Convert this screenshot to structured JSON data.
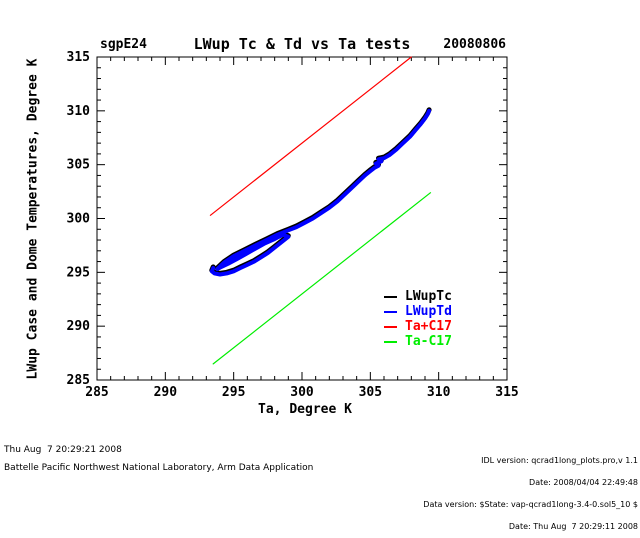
{
  "header": {
    "site": "sgpE24",
    "title": "LWup Tc & Td vs Ta tests",
    "date": "20080806"
  },
  "chart_data": {
    "type": "line",
    "title": "LWup Tc & Td vs Ta tests",
    "xlabel": "Ta, Degree K",
    "ylabel": "LWup Case and Dome Temperatures, Degree K",
    "xlim": [
      285,
      315
    ],
    "ylim": [
      285,
      315
    ],
    "x_ticks": [
      285,
      290,
      295,
      300,
      305,
      310,
      315
    ],
    "y_ticks": [
      285,
      290,
      295,
      300,
      305,
      310,
      315
    ],
    "minor_tick_step": 1,
    "grid": false,
    "series": [
      {
        "name": "LWupTc",
        "color": "#000000",
        "width": 5,
        "x": [
          293.5,
          293.4,
          293.6,
          294.0,
          294.5,
          295.0,
          295.5,
          296.0,
          296.5,
          297.0,
          297.5,
          298.0,
          298.5,
          299.0,
          298.6,
          298.0,
          297.3,
          296.6,
          295.9,
          295.2,
          294.6,
          294.1,
          293.8,
          294.3,
          295.0,
          295.8,
          296.6,
          297.4,
          298.2,
          299.0,
          299.6,
          300.2,
          300.8,
          301.4,
          302.0,
          302.6,
          303.1,
          303.6,
          304.1,
          304.6,
          305.0,
          305.3,
          305.6,
          305.4,
          305.8,
          305.6,
          306.0,
          306.4,
          306.9,
          307.4,
          307.9,
          308.3,
          308.7,
          309.0,
          309.2,
          309.3
        ],
        "y": [
          295.5,
          295.2,
          295.0,
          294.9,
          295.0,
          295.2,
          295.5,
          295.8,
          296.1,
          296.5,
          296.9,
          297.4,
          297.9,
          298.4,
          298.6,
          298.2,
          297.8,
          297.3,
          296.8,
          296.3,
          295.9,
          295.6,
          295.4,
          296.0,
          296.6,
          297.1,
          297.6,
          298.1,
          298.6,
          299.0,
          299.3,
          299.7,
          300.1,
          300.6,
          301.1,
          301.7,
          302.3,
          302.9,
          303.5,
          304.1,
          304.5,
          304.8,
          305.0,
          305.2,
          305.4,
          305.6,
          305.7,
          306.0,
          306.5,
          307.1,
          307.7,
          308.3,
          308.9,
          309.4,
          309.8,
          310.1
        ]
      },
      {
        "name": "LWupTd",
        "color": "#0000ff",
        "width": 4,
        "x": [
          293.5,
          293.4,
          293.6,
          294.0,
          294.5,
          295.0,
          295.5,
          296.0,
          296.5,
          297.0,
          297.5,
          298.0,
          298.5,
          299.0,
          298.6,
          298.0,
          297.3,
          296.6,
          295.9,
          295.2,
          294.6,
          294.1,
          293.8,
          294.3,
          295.0,
          295.8,
          296.6,
          297.4,
          298.2,
          299.0,
          299.6,
          300.2,
          300.8,
          301.4,
          302.0,
          302.6,
          303.1,
          303.6,
          304.1,
          304.6,
          305.0,
          305.3,
          305.6,
          305.4,
          305.8,
          305.6,
          306.0,
          306.4,
          306.9,
          307.4,
          307.9,
          308.3,
          308.7,
          309.0,
          309.2,
          309.3
        ],
        "y": [
          295.4,
          295.1,
          294.9,
          294.8,
          294.9,
          295.1,
          295.4,
          295.7,
          296.0,
          296.4,
          296.8,
          297.3,
          297.8,
          298.3,
          298.5,
          298.1,
          297.7,
          297.2,
          296.7,
          296.2,
          295.8,
          295.5,
          295.3,
          295.9,
          296.5,
          297.0,
          297.5,
          298.0,
          298.5,
          298.9,
          299.2,
          299.6,
          300.0,
          300.5,
          301.0,
          301.6,
          302.2,
          302.8,
          303.4,
          304.0,
          304.4,
          304.7,
          304.9,
          305.1,
          305.3,
          305.5,
          305.6,
          305.9,
          306.4,
          307.0,
          307.6,
          308.2,
          308.8,
          309.3,
          309.7,
          310.0
        ]
      },
      {
        "name": "Ta+C17",
        "color": "#ff0000",
        "width": 1.2,
        "x": [
          293.3,
          308.0
        ],
        "y": [
          300.3,
          315.0
        ]
      },
      {
        "name": "Ta-C17",
        "color": "#00ee00",
        "width": 1.2,
        "x": [
          293.5,
          309.4
        ],
        "y": [
          286.5,
          302.4
        ]
      }
    ],
    "legend": {
      "position": "right-center",
      "items": [
        {
          "label": "LWupTc",
          "color": "#000000"
        },
        {
          "label": "LWupTd",
          "color": "#0000ff"
        },
        {
          "label": "Ta+C17",
          "color": "#ff0000"
        },
        {
          "label": "Ta-C17",
          "color": "#00ee00"
        }
      ]
    }
  },
  "footer": {
    "left_line1": "Thu Aug  7 20:29:21 2008",
    "left_line2": "Battelle Pacific Northwest National Laboratory, Arm Data Application",
    "right_line1": "IDL version: qcrad1long_plots.pro,v 1.1",
    "right_line2": "Date: 2008/04/04 22:49:48",
    "right_line3": "Data version: $State: vap-qcrad1long-3.4-0.sol5_10 $",
    "right_line4": "Date: Thu Aug  7 20:29:11 2008"
  }
}
